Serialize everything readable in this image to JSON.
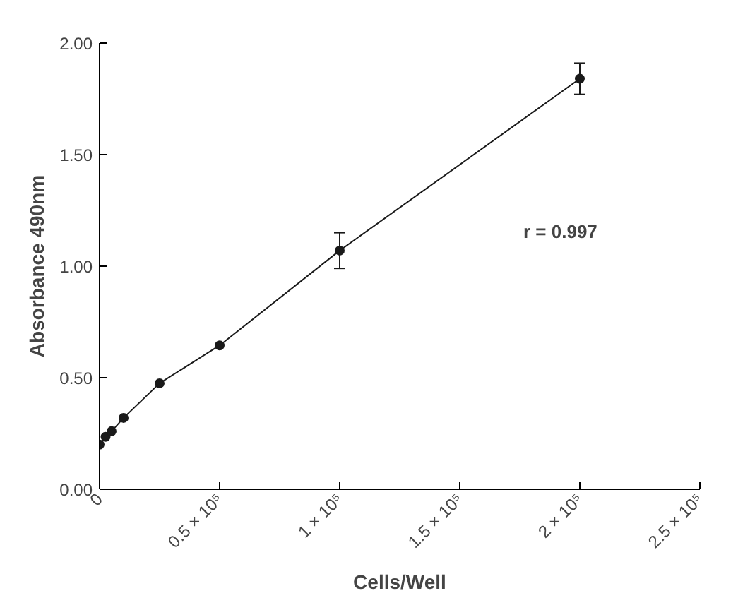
{
  "chart_data": {
    "type": "line",
    "xlabel": "Cells/Well",
    "ylabel": "Absorbance 490nm",
    "x": [
      0,
      2500,
      5000,
      10000,
      25000,
      50000,
      100000,
      200000
    ],
    "series": [
      {
        "color": "#1a1a1a",
        "values": [
          0.2,
          0.235,
          0.26,
          0.32,
          0.475,
          0.645,
          1.07,
          1.84
        ],
        "errors": [
          null,
          null,
          null,
          null,
          null,
          null,
          0.08,
          0.07
        ]
      }
    ],
    "marker": "circle",
    "line_style": "solid",
    "grid": false,
    "xlim": [
      0,
      250000
    ],
    "ylim": [
      0,
      2
    ],
    "xticks": [
      0,
      {
        "value": 50000,
        "label": "0.5 × 10⁵"
      },
      {
        "value": 100000,
        "label": "1 × 10⁵"
      },
      {
        "value": 150000,
        "label": "1.5 × 10⁵"
      },
      {
        "value": 200000,
        "label": "2 × 10⁵"
      },
      {
        "value": 250000,
        "label": "2.5 × 10⁵"
      }
    ],
    "yticks": [
      {
        "value": 0,
        "label": "0.00"
      },
      {
        "value": 0.5,
        "label": "0.50"
      },
      {
        "value": 1,
        "label": "1.00"
      },
      {
        "value": 1.5,
        "label": "1.50"
      },
      {
        "value": 2,
        "label": "2.00"
      }
    ],
    "annotations": [
      "r = 0.997"
    ]
  }
}
